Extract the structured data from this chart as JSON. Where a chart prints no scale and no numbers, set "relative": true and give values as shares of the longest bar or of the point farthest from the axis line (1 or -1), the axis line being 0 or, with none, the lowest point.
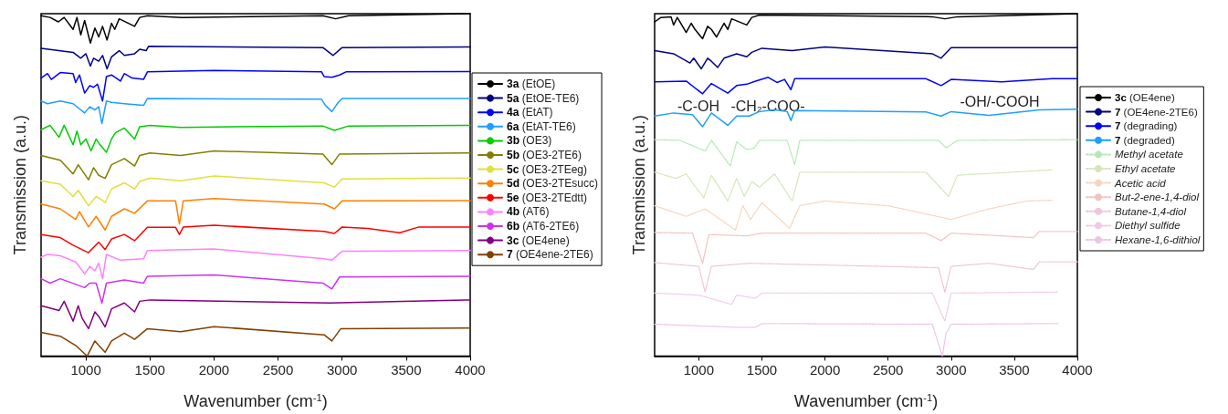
{
  "chart_data": [
    {
      "type": "line",
      "xlabel": "Wavenumber (cm$^{-1}$)",
      "ylabel": "Transmission (a.u.)",
      "xlim": [
        650,
        4000
      ],
      "xticks": [
        1000,
        1500,
        2000,
        2500,
        3000,
        3500,
        4000
      ],
      "relative": true,
      "tick_labels": "x",
      "legend": "right",
      "grid": false,
      "marker": "none",
      "line_style": "solid",
      "series": [
        {
          "name": "3a (EtOE)",
          "color": "#000000",
          "x": [
            650,
            720,
            785,
            830,
            900,
            930,
            960,
            990,
            1035,
            1070,
            1100,
            1130,
            1165,
            1200,
            1225,
            1260,
            1380,
            1420,
            1480,
            1750,
            2850,
            2950,
            3050,
            4000
          ],
          "values": [
            0.994,
            0.989,
            0.976,
            0.989,
            0.954,
            0.989,
            0.938,
            0.98,
            0.914,
            0.958,
            0.932,
            0.963,
            0.923,
            0.972,
            0.954,
            0.985,
            0.963,
            0.989,
            0.994,
            0.989,
            0.994,
            0.985,
            0.994,
            1
          ]
        },
        {
          "name": "5a (EtOE-TE6)",
          "color": "#000080",
          "x": [
            650,
            900,
            960,
            1000,
            1035,
            1060,
            1100,
            1130,
            1165,
            1200,
            1260,
            1300,
            1380,
            1420,
            1470,
            1490,
            2850,
            2930,
            3000,
            4000
          ],
          "values": [
            0.899,
            0.887,
            0.87,
            0.883,
            0.847,
            0.87,
            0.861,
            0.878,
            0.839,
            0.874,
            0.892,
            0.878,
            0.883,
            0.896,
            0.892,
            0.905,
            0.901,
            0.878,
            0.901,
            0.903
          ]
        },
        {
          "name": "4a (EtAT)",
          "color": "#0000ff",
          "x": [
            650,
            700,
            730,
            800,
            900,
            920,
            950,
            990,
            1030,
            1060,
            1090,
            1130,
            1160,
            1200,
            1270,
            1300,
            1360,
            1450,
            1480,
            2000,
            2840,
            2860,
            2920,
            2980,
            3030,
            4000
          ],
          "values": [
            0.812,
            0.825,
            0.808,
            0.828,
            0.825,
            0.799,
            0.821,
            0.768,
            0.79,
            0.785,
            0.794,
            0.745,
            0.816,
            0.821,
            0.803,
            0.825,
            0.812,
            0.808,
            0.83,
            0.834,
            0.83,
            0.816,
            0.814,
            0.821,
            0.83,
            0.831
          ]
        },
        {
          "name": "6a (EtAT-TE6)",
          "color": "#1e9fff",
          "x": [
            650,
            700,
            800,
            900,
            990,
            1030,
            1070,
            1100,
            1125,
            1160,
            1200,
            1300,
            1450,
            1480,
            2840,
            2870,
            2920,
            2970,
            3000,
            4000
          ],
          "values": [
            0.745,
            0.737,
            0.745,
            0.737,
            0.71,
            0.728,
            0.719,
            0.728,
            0.679,
            0.745,
            0.741,
            0.737,
            0.732,
            0.752,
            0.75,
            0.732,
            0.714,
            0.741,
            0.752,
            0.752
          ]
        },
        {
          "name": "3b (OE3)",
          "color": "#00cc00",
          "x": [
            650,
            720,
            790,
            830,
            900,
            930,
            960,
            1000,
            1040,
            1080,
            1110,
            1160,
            1200,
            1230,
            1300,
            1380,
            1420,
            1500,
            1740,
            2850,
            2940,
            3050,
            4000
          ],
          "values": [
            0.661,
            0.674,
            0.639,
            0.674,
            0.617,
            0.657,
            0.617,
            0.634,
            0.599,
            0.634,
            0.617,
            0.595,
            0.634,
            0.652,
            0.666,
            0.634,
            0.67,
            0.674,
            0.668,
            0.672,
            0.659,
            0.672,
            0.674
          ]
        },
        {
          "name": "5b (OE3-2TE6)",
          "color": "#808000",
          "x": [
            650,
            800,
            900,
            940,
            1020,
            1060,
            1100,
            1150,
            1200,
            1300,
            1380,
            1420,
            1500,
            1740,
            2000,
            2850,
            2920,
            2980,
            4000
          ],
          "values": [
            0.586,
            0.572,
            0.532,
            0.559,
            0.515,
            0.55,
            0.528,
            0.519,
            0.559,
            0.577,
            0.555,
            0.586,
            0.593,
            0.586,
            0.599,
            0.59,
            0.559,
            0.59,
            0.593
          ]
        },
        {
          "name": "5c (OE3-2TEeg)",
          "color": "#e0e040",
          "x": [
            650,
            800,
            900,
            940,
            1020,
            1080,
            1120,
            1150,
            1200,
            1300,
            1380,
            1420,
            1500,
            1740,
            2000,
            2860,
            2940,
            3000,
            4000
          ],
          "values": [
            0.512,
            0.502,
            0.466,
            0.484,
            0.439,
            0.466,
            0.457,
            0.448,
            0.488,
            0.506,
            0.488,
            0.51,
            0.52,
            0.512,
            0.526,
            0.506,
            0.493,
            0.517,
            0.52
          ]
        },
        {
          "name": "5d (OE3-2TEsucc)",
          "color": "#ff8000",
          "x": [
            650,
            800,
            920,
            950,
            1020,
            1080,
            1150,
            1200,
            1300,
            1380,
            1480,
            1700,
            1730,
            1760,
            2000,
            2860,
            2940,
            3000,
            4000
          ],
          "values": [
            0.444,
            0.43,
            0.399,
            0.422,
            0.377,
            0.408,
            0.368,
            0.408,
            0.43,
            0.417,
            0.453,
            0.453,
            0.386,
            0.453,
            0.46,
            0.444,
            0.43,
            0.453,
            0.454
          ]
        },
        {
          "name": "5e (OE3-2TEdtt)",
          "color": "#ff0000",
          "x": [
            650,
            800,
            900,
            1020,
            1100,
            1150,
            1200,
            1300,
            1380,
            1480,
            1700,
            1730,
            1760,
            2000,
            2860,
            2940,
            3000,
            3200,
            3450,
            3600,
            4000
          ],
          "values": [
            0.355,
            0.346,
            0.324,
            0.302,
            0.333,
            0.311,
            0.342,
            0.355,
            0.337,
            0.376,
            0.376,
            0.355,
            0.377,
            0.382,
            0.364,
            0.358,
            0.377,
            0.373,
            0.36,
            0.377,
            0.377
          ]
        },
        {
          "name": "4b (AT6)",
          "color": "#ff80ff",
          "x": [
            650,
            700,
            800,
            920,
            990,
            1030,
            1070,
            1100,
            1130,
            1160,
            1270,
            1450,
            1480,
            2000,
            2860,
            2920,
            3000,
            4000
          ],
          "values": [
            0.289,
            0.297,
            0.293,
            0.275,
            0.24,
            0.262,
            0.249,
            0.271,
            0.226,
            0.297,
            0.28,
            0.284,
            0.308,
            0.313,
            0.284,
            0.28,
            0.306,
            0.308
          ]
        },
        {
          "name": "6b (AT6-2TE6)",
          "color": "#cc33ee",
          "x": [
            650,
            720,
            800,
            990,
            1030,
            1080,
            1125,
            1160,
            1300,
            1450,
            1480,
            2000,
            2850,
            2920,
            2980,
            4000
          ],
          "values": [
            0.226,
            0.213,
            0.226,
            0.2,
            0.213,
            0.213,
            0.155,
            0.213,
            0.222,
            0.213,
            0.233,
            0.237,
            0.213,
            0.196,
            0.231,
            0.233
          ]
        },
        {
          "name": "3c (OE4ene)",
          "color": "#800080",
          "x": [
            650,
            790,
            830,
            900,
            940,
            970,
            1020,
            1070,
            1100,
            1150,
            1200,
            1300,
            1380,
            1420,
            1500,
            2900,
            4000
          ],
          "values": [
            0.147,
            0.133,
            0.16,
            0.102,
            0.147,
            0.111,
            0.08,
            0.129,
            0.116,
            0.085,
            0.138,
            0.155,
            0.129,
            0.16,
            0.164,
            0.155,
            0.164
          ]
        },
        {
          "name": "7 (OE4ene-2TE6)",
          "color": "#804000",
          "x": [
            650,
            800,
            920,
            1010,
            1070,
            1100,
            1150,
            1200,
            1300,
            1380,
            1480,
            1740,
            2000,
            2860,
            2920,
            2990,
            4000
          ],
          "values": [
            0.069,
            0.058,
            0.031,
            0,
            0.044,
            0.031,
            0.011,
            0.044,
            0.067,
            0.049,
            0.08,
            0.071,
            0.086,
            0.062,
            0.044,
            0.08,
            0.082
          ]
        }
      ]
    },
    {
      "type": "line",
      "xlabel": "Wavenumber (cm$^{-1}$)",
      "ylabel": "Transmission (a.u.)",
      "xlim": [
        650,
        4000
      ],
      "xticks": [
        1000,
        1500,
        2000,
        2500,
        3000,
        3500,
        4000
      ],
      "relative": true,
      "tick_labels": "x",
      "legend": "right",
      "grid": false,
      "marker": "none",
      "line_style": "solid",
      "annotations": [
        "-C-OH",
        "-CH$_{2}$-COO-",
        "-OH/-COOH"
      ],
      "series": [
        {
          "name": "3c (OE4ene)",
          "color": "#000000",
          "x": [
            650,
            700,
            780,
            800,
            830,
            900,
            940,
            970,
            1030,
            1070,
            1100,
            1140,
            1200,
            1230,
            1260,
            1380,
            1420,
            1480,
            2850,
            2950,
            3050,
            4000
          ],
          "values": [
            0.976,
            0.989,
            0.991,
            0.967,
            0.989,
            0.945,
            0.972,
            0.954,
            0.927,
            0.963,
            0.954,
            0.932,
            0.972,
            0.954,
            0.985,
            0.967,
            0.989,
            0.996,
            0.991,
            0.985,
            0.991,
            1
          ]
        },
        {
          "name": "7 (OE4ene-2TE6)",
          "color": "#000080",
          "x": [
            650,
            800,
            930,
            960,
            1020,
            1070,
            1100,
            1150,
            1200,
            1300,
            1380,
            1420,
            1500,
            1740,
            2000,
            2850,
            2920,
            3000,
            4000
          ],
          "values": [
            0.892,
            0.883,
            0.856,
            0.87,
            0.839,
            0.87,
            0.861,
            0.843,
            0.87,
            0.883,
            0.874,
            0.887,
            0.899,
            0.892,
            0.903,
            0.883,
            0.87,
            0.901,
            0.901
          ]
        },
        {
          "name": "7 (degrading)",
          "color": "#0000ff",
          "x": [
            650,
            900,
            1030,
            1100,
            1230,
            1300,
            1380,
            1450,
            1550,
            1620,
            1680,
            1730,
            1760,
            2800,
            2920,
            3000,
            3400,
            3800,
            4000
          ],
          "values": [
            0.801,
            0.803,
            0.766,
            0.796,
            0.768,
            0.79,
            0.794,
            0.803,
            0.814,
            0.799,
            0.808,
            0.778,
            0.81,
            0.81,
            0.79,
            0.808,
            0.801,
            0.81,
            0.81
          ]
        },
        {
          "name": "7 (degraded)",
          "color": "#1e9fff",
          "x": [
            650,
            800,
            950,
            1030,
            1100,
            1230,
            1300,
            1400,
            1480,
            1600,
            1700,
            1730,
            1760,
            2800,
            2920,
            3000,
            3300,
            3700,
            4000
          ],
          "values": [
            0.701,
            0.71,
            0.705,
            0.67,
            0.71,
            0.674,
            0.701,
            0.701,
            0.714,
            0.719,
            0.714,
            0.688,
            0.717,
            0.713,
            0.701,
            0.714,
            0.703,
            0.719,
            0.721
          ]
        },
        {
          "name": "Methyl acetate",
          "color": "#b8e6b8",
          "line_style": "dotted",
          "x": [
            650,
            850,
            1050,
            1100,
            1250,
            1300,
            1380,
            1440,
            1480,
            1700,
            1760,
            1800,
            2900,
            2960,
            3050,
            4000
          ],
          "values": [
            0.632,
            0.63,
            0.599,
            0.63,
            0.555,
            0.626,
            0.603,
            0.608,
            0.63,
            0.63,
            0.559,
            0.63,
            0.63,
            0.608,
            0.63,
            0.632
          ]
        },
        {
          "name": "Ethyl acetate",
          "color": "#d4e6b8",
          "line_style": "dotted",
          "x": [
            650,
            820,
            900,
            950,
            1040,
            1100,
            1230,
            1300,
            1360,
            1420,
            1480,
            1600,
            1740,
            1800,
            2800,
            2980,
            3050,
            3800
          ],
          "values": [
            0.537,
            0.519,
            0.532,
            0.506,
            0.462,
            0.528,
            0.453,
            0.519,
            0.466,
            0.51,
            0.493,
            0.532,
            0.453,
            0.537,
            0.537,
            0.466,
            0.528,
            0.544
          ]
        },
        {
          "name": "Acetic acid",
          "color": "#f5d5bf",
          "line_style": "dotted",
          "x": [
            650,
            900,
            1050,
            1290,
            1350,
            1410,
            1500,
            1720,
            1800,
            2000,
            2500,
            3000,
            3300,
            3600,
            3800
          ],
          "values": [
            0.439,
            0.408,
            0.43,
            0.368,
            0.439,
            0.399,
            0.448,
            0.373,
            0.439,
            0.453,
            0.439,
            0.399,
            0.43,
            0.453,
            0.455
          ]
        },
        {
          "name": "But-2-ene-1,4-diol",
          "color": "#f5c0c0",
          "line_style": "dotted",
          "x": [
            650,
            950,
            1030,
            1080,
            1380,
            1500,
            2800,
            2920,
            3000,
            3650,
            3700,
            4000
          ],
          "values": [
            0.361,
            0.359,
            0.271,
            0.355,
            0.351,
            0.359,
            0.359,
            0.337,
            0.359,
            0.346,
            0.364,
            0.364
          ]
        },
        {
          "name": "Butane-1,4-diol",
          "color": "#f0c4dc",
          "line_style": "dotted",
          "x": [
            650,
            1000,
            1050,
            1100,
            1400,
            2900,
            2950,
            3000,
            3300,
            3650,
            3700,
            4000
          ],
          "values": [
            0.273,
            0.262,
            0.187,
            0.262,
            0.271,
            0.258,
            0.187,
            0.262,
            0.271,
            0.253,
            0.275,
            0.275
          ]
        },
        {
          "name": "Diethyl sulfide",
          "color": "#f0cce6",
          "line_style": "dotted",
          "x": [
            650,
            1000,
            1260,
            1300,
            1450,
            1500,
            2850,
            2950,
            3000,
            3850
          ],
          "values": [
            0.184,
            0.178,
            0.151,
            0.178,
            0.169,
            0.184,
            0.184,
            0.102,
            0.184,
            0.187
          ]
        },
        {
          "name": "Hexane-1,6-dithiol",
          "color": "#ecc4e6",
          "line_style": "dotted",
          "x": [
            650,
            1300,
            1450,
            1500,
            2850,
            2930,
            2960,
            3000,
            3850
          ],
          "values": [
            0.093,
            0.084,
            0.084,
            0.095,
            0.093,
            0,
            0.067,
            0.093,
            0.095
          ]
        }
      ]
    }
  ]
}
